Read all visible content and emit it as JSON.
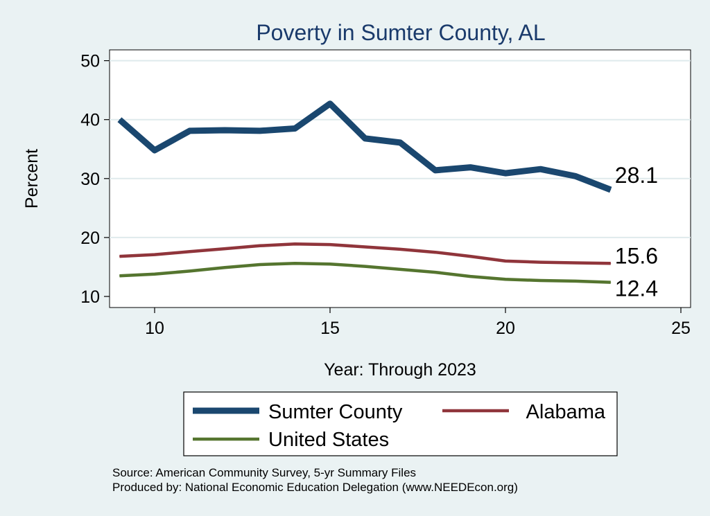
{
  "chart_data": {
    "type": "line",
    "title": "Poverty in Sumter County, AL",
    "xlabel": "Year: Through 2023",
    "ylabel": "Percent",
    "xlim": [
      9,
      25
    ],
    "ylim": [
      10,
      52
    ],
    "xticks": [
      10,
      15,
      20,
      25
    ],
    "yticks": [
      10,
      20,
      30,
      40,
      50
    ],
    "x": [
      9,
      10,
      11,
      12,
      13,
      14,
      15,
      16,
      17,
      18,
      19,
      20,
      21,
      22,
      23
    ],
    "series": [
      {
        "name": "Sumter County",
        "color": "#1a476f",
        "values": [
          40.0,
          34.8,
          38.1,
          38.2,
          38.1,
          38.5,
          42.7,
          36.8,
          36.1,
          31.4,
          31.9,
          30.9,
          31.6,
          30.4,
          28.1
        ],
        "end_label": "28.1"
      },
      {
        "name": "Alabama",
        "color": "#90353b",
        "values": [
          16.8,
          17.1,
          17.6,
          18.1,
          18.6,
          18.9,
          18.8,
          18.4,
          18.0,
          17.5,
          16.8,
          16.0,
          15.8,
          15.7,
          15.6
        ],
        "end_label": "15.6"
      },
      {
        "name": "United States",
        "color": "#55752f",
        "values": [
          13.5,
          13.8,
          14.3,
          14.9,
          15.4,
          15.6,
          15.5,
          15.1,
          14.6,
          14.1,
          13.4,
          12.9,
          12.7,
          12.6,
          12.4
        ],
        "end_label": "12.4"
      }
    ],
    "legend": {
      "position": "bottom",
      "entries": [
        "Sumter County",
        "Alabama",
        "United States"
      ]
    },
    "notes": [
      "Source: American Community Survey, 5-yr Summary Files",
      "Produced by: National Economic Education Delegation (www.NEEDEcon.org)"
    ]
  }
}
